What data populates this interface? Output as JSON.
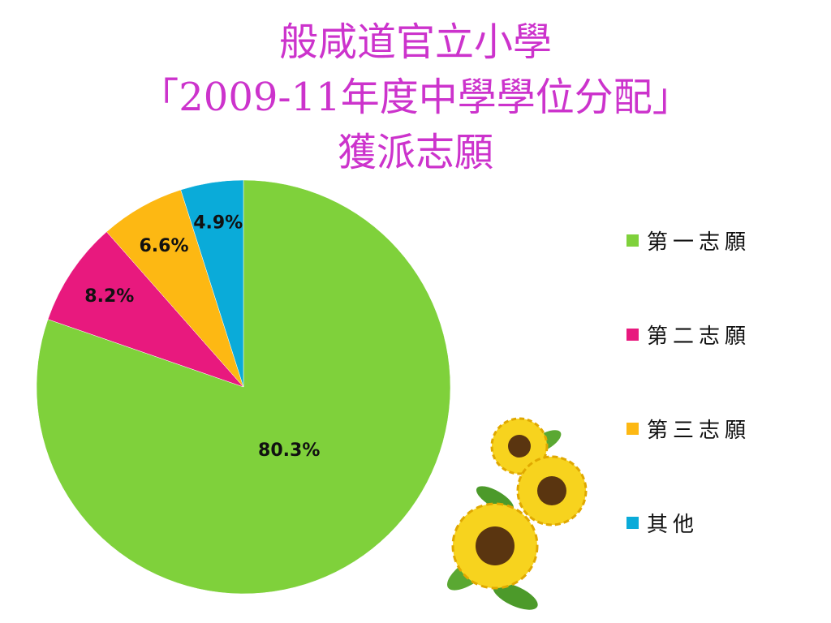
{
  "colors": {
    "title": "#cc33cc",
    "series": [
      "#7fd13b",
      "#e8197e",
      "#fdb813",
      "#0aabd9"
    ]
  },
  "chart_data": {
    "type": "pie",
    "title_lines": [
      "般咸道官立小學",
      "「2009-11年度中學學位分配」",
      "獲派志願"
    ],
    "categories": [
      "第一志願",
      "第二志願",
      "第三志願",
      "其他"
    ],
    "values": [
      80.3,
      8.2,
      6.6,
      4.9
    ],
    "data_labels": [
      "80.3%",
      "8.2%",
      "6.6%",
      "4.9%"
    ],
    "legend_position": "right",
    "grid": false
  },
  "decoration": {
    "icon": "sunflowers-icon"
  }
}
